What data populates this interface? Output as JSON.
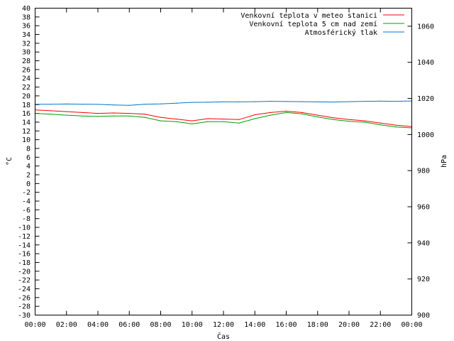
{
  "chart_data": {
    "type": "line",
    "title": "",
    "xlabel": "Čas",
    "ylabel": "°C",
    "y2label": "hPa",
    "grid": false,
    "legend_position": "top-right",
    "xlim": [
      "00:00",
      "00:00"
    ],
    "ylim": [
      -30,
      40
    ],
    "y2lim": [
      900,
      1070
    ],
    "x_ticks": [
      "00:00",
      "02:00",
      "04:00",
      "06:00",
      "08:00",
      "10:00",
      "12:00",
      "14:00",
      "16:00",
      "18:00",
      "20:00",
      "22:00",
      "00:00"
    ],
    "y_ticks": [
      40,
      38,
      36,
      34,
      32,
      30,
      28,
      26,
      24,
      22,
      20,
      18,
      16,
      14,
      12,
      10,
      8,
      6,
      4,
      2,
      0,
      -2,
      -4,
      -6,
      -8,
      -10,
      -12,
      -14,
      -16,
      -18,
      -20,
      -22,
      -24,
      -26,
      -28,
      -30
    ],
    "y2_ticks": [
      1060,
      1040,
      1020,
      1000,
      980,
      960,
      940,
      920,
      900
    ],
    "x_hours": [
      0,
      1,
      2,
      3,
      4,
      5,
      6,
      7,
      8,
      9,
      10,
      11,
      12,
      13,
      14,
      15,
      16,
      17,
      18,
      19,
      20,
      21,
      22,
      23,
      24
    ],
    "series": [
      {
        "name": "Venkovní teplota v meteo stanici",
        "color": "#ff0000",
        "axis": "left",
        "values": [
          16.8,
          16.6,
          16.4,
          16.2,
          16.0,
          16.1,
          16.0,
          15.8,
          15.1,
          14.7,
          14.3,
          14.8,
          14.7,
          14.6,
          15.7,
          16.2,
          16.5,
          16.2,
          15.6,
          15.0,
          14.6,
          14.3,
          13.8,
          13.3,
          13.0
        ]
      },
      {
        "name": "Venkovní teplota 5 cm nad zemí",
        "color": "#00a000",
        "axis": "left",
        "values": [
          16.0,
          15.8,
          15.6,
          15.4,
          15.3,
          15.4,
          15.4,
          15.1,
          14.3,
          14.1,
          13.6,
          14.1,
          14.1,
          13.8,
          14.8,
          15.6,
          16.2,
          15.9,
          15.2,
          14.6,
          14.2,
          14.0,
          13.4,
          12.9,
          12.7
        ]
      },
      {
        "name": "Atmosférický tlak",
        "color": "#0077cc",
        "axis": "right",
        "values": [
          1016.8,
          1016.8,
          1016.9,
          1016.8,
          1016.7,
          1016.4,
          1016.2,
          1016.8,
          1017.0,
          1017.4,
          1017.8,
          1017.9,
          1018.1,
          1018.1,
          1018.2,
          1018.4,
          1018.3,
          1018.2,
          1018.1,
          1018.0,
          1018.2,
          1018.4,
          1018.5,
          1018.4,
          1018.6
        ]
      }
    ]
  }
}
